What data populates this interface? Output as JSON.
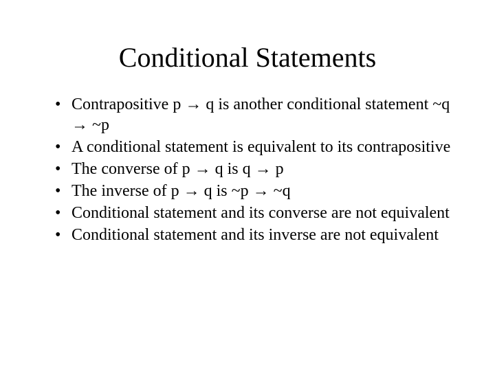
{
  "slide": {
    "title": "Conditional Statements",
    "bullets": [
      {
        "html": "Contrapositive p <span class=\"arrow\">→</span> q is another conditional statement ~q <span class=\"arrow\">→</span> ~p"
      },
      {
        "html": "A conditional statement is equivalent to its contrapositive"
      },
      {
        "html": "The converse of p <span class=\"arrow\">→</span> q is q <span class=\"arrow\">→</span> p"
      },
      {
        "html": "The inverse of p <span class=\"arrow\">→</span> q is ~p <span class=\"arrow\">→</span> ~q"
      },
      {
        "html": "Conditional statement and its converse are not equivalent"
      },
      {
        "html": "Conditional statement and its inverse are not equivalent"
      }
    ],
    "styling": {
      "background_color": "#ffffff",
      "text_color": "#000000",
      "font_family": "Times New Roman",
      "title_fontsize": 40,
      "body_fontsize": 24,
      "arrow_glyph": "→",
      "bullet_glyph": "•"
    }
  }
}
